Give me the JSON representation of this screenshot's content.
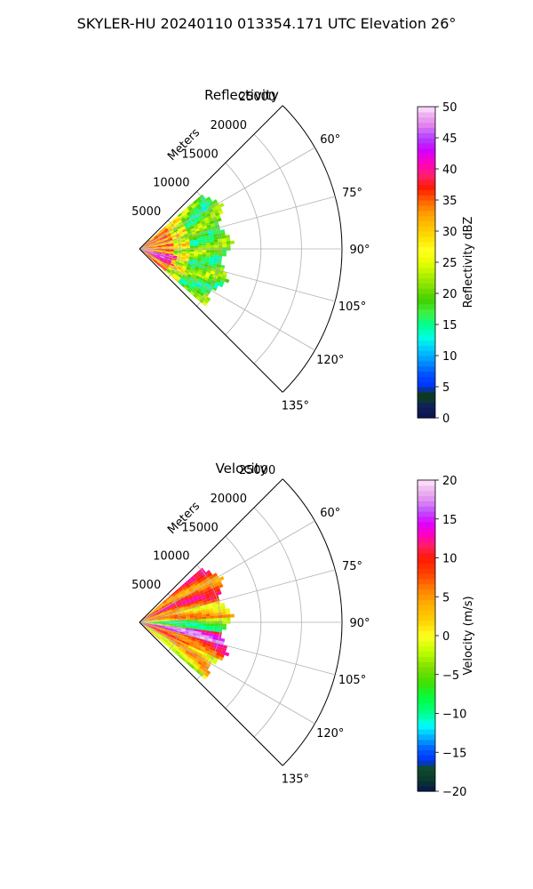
{
  "figure": {
    "suptitle": "SKYLER-HU  20240110  013354.171 UTC Elevation 26°"
  },
  "chart_data": [
    {
      "type": "heatmap",
      "projection": "polar-sector",
      "title": "Reflectivity",
      "radial_axis_label": "Meters",
      "radial_ticks": [
        5000,
        10000,
        15000,
        20000,
        25000
      ],
      "radial_tick_labels": [
        "5000",
        "10000",
        "15000",
        "20000",
        "25000"
      ],
      "radial_limit": [
        0,
        25000
      ],
      "angular_ticks": [
        60,
        75,
        90,
        105,
        120,
        135
      ],
      "angular_tick_labels": [
        "60°",
        "75°",
        "90°",
        "105°",
        "120°",
        "135°"
      ],
      "angular_limit": [
        45,
        135
      ],
      "grid": true,
      "data_extent": {
        "azimuth_range": [
          49,
          130
        ],
        "range_max": 11500
      },
      "colorbar": {
        "label": "Reflectivity dBZ",
        "range": [
          0,
          50
        ],
        "ticks": [
          0,
          5,
          10,
          15,
          20,
          25,
          30,
          35,
          40,
          45,
          50
        ],
        "tick_labels": [
          "0",
          "5",
          "10",
          "15",
          "20",
          "25",
          "30",
          "35",
          "40",
          "45",
          "50"
        ]
      },
      "field_description": [
        {
          "range_band": [
            0,
            4000
          ],
          "dominant_value": 36
        },
        {
          "range_band": [
            4000,
            6000
          ],
          "dominant_value": 26
        },
        {
          "range_band": [
            6000,
            11500
          ],
          "dominant_value": 19
        }
      ]
    },
    {
      "type": "heatmap",
      "projection": "polar-sector",
      "title": "Velocity",
      "radial_axis_label": "Meters",
      "radial_ticks": [
        5000,
        10000,
        15000,
        20000,
        25000
      ],
      "radial_tick_labels": [
        "5000",
        "10000",
        "15000",
        "20000",
        "25000"
      ],
      "radial_limit": [
        0,
        25000
      ],
      "angular_ticks": [
        60,
        75,
        90,
        105,
        120,
        135
      ],
      "angular_tick_labels": [
        "60°",
        "75°",
        "90°",
        "105°",
        "120°",
        "135°"
      ],
      "angular_limit": [
        45,
        135
      ],
      "grid": true,
      "data_extent": {
        "azimuth_range": [
          49,
          130
        ],
        "range_max": 11500
      },
      "colorbar": {
        "label": "Velocity (m/s)",
        "range": [
          -20,
          20
        ],
        "ticks": [
          -20,
          -15,
          -10,
          -5,
          0,
          5,
          10,
          15,
          20
        ],
        "tick_labels": [
          "−20",
          "−15",
          "−10",
          "−5",
          "0",
          "5",
          "10",
          "15",
          "20"
        ]
      },
      "field_description": [
        {
          "azimuth_band": [
            49,
            75
          ],
          "dominant_value": 8
        },
        {
          "azimuth_band": [
            75,
            88
          ],
          "dominant_value": 3
        },
        {
          "azimuth_band": [
            88,
            98
          ],
          "dominant_value": -6
        },
        {
          "azimuth_band": [
            98,
            106
          ],
          "dominant_value": 14
        },
        {
          "azimuth_band": [
            106,
            115
          ],
          "dominant_value": 9
        },
        {
          "azimuth_band": [
            115,
            130
          ],
          "dominant_value": 2
        }
      ]
    }
  ],
  "colormap": {
    "reflectivity_stops": [
      [
        0,
        "#0a1450"
      ],
      [
        2,
        "#10205a"
      ],
      [
        3,
        "#0a3a2a"
      ],
      [
        4,
        "#103818"
      ],
      [
        5,
        "#0030ff"
      ],
      [
        7,
        "#0050ff"
      ],
      [
        9,
        "#0090ff"
      ],
      [
        11,
        "#00c8ff"
      ],
      [
        13,
        "#00ffe0"
      ],
      [
        15,
        "#00ff90"
      ],
      [
        17,
        "#40f040"
      ],
      [
        19,
        "#40d000"
      ],
      [
        21,
        "#80e000"
      ],
      [
        23,
        "#b0f000"
      ],
      [
        25,
        "#e8ff00"
      ],
      [
        27,
        "#ffff20"
      ],
      [
        29,
        "#ffe000"
      ],
      [
        31,
        "#ffc000"
      ],
      [
        33,
        "#ff9a00"
      ],
      [
        35,
        "#ff6000"
      ],
      [
        37,
        "#ff1a00"
      ],
      [
        39,
        "#ff2070"
      ],
      [
        41,
        "#ff00c0"
      ],
      [
        43,
        "#d000ff"
      ],
      [
        45,
        "#b040ff"
      ],
      [
        47,
        "#e080f0"
      ],
      [
        49,
        "#f0b8f0"
      ],
      [
        50,
        "#ffe6ff"
      ]
    ],
    "velocity_stops": [
      [
        -20,
        "#0a1450"
      ],
      [
        -18.5,
        "#0a3a2a"
      ],
      [
        -17,
        "#104a30"
      ],
      [
        -16,
        "#0030ff"
      ],
      [
        -14.5,
        "#0060ff"
      ],
      [
        -13,
        "#00b0ff"
      ],
      [
        -11.5,
        "#00ffff"
      ],
      [
        -10,
        "#00ff90"
      ],
      [
        -8,
        "#00ff40"
      ],
      [
        -6,
        "#40e000"
      ],
      [
        -4,
        "#80e000"
      ],
      [
        -2,
        "#c0ff00"
      ],
      [
        0,
        "#ffff20"
      ],
      [
        2,
        "#ffd000"
      ],
      [
        4,
        "#ffb000"
      ],
      [
        6,
        "#ff8000"
      ],
      [
        8,
        "#ff4000"
      ],
      [
        10,
        "#ff1a00"
      ],
      [
        11.5,
        "#ff2060"
      ],
      [
        13,
        "#ff00c0"
      ],
      [
        14.5,
        "#e000ff"
      ],
      [
        16,
        "#c050ff"
      ],
      [
        17.5,
        "#e090f0"
      ],
      [
        19,
        "#f0c0f0"
      ],
      [
        20,
        "#ffe6ff"
      ]
    ]
  }
}
